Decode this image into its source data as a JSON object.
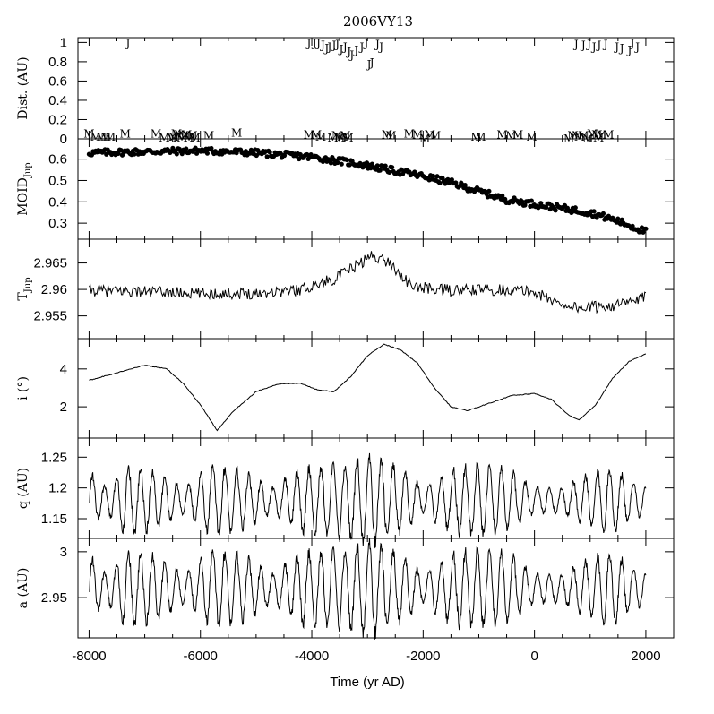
{
  "chart_data": {
    "type": "line",
    "title": "2006VY13",
    "xlabel": "Time (yr AD)",
    "xlim": [
      -8200,
      2500
    ],
    "x_ticks": [
      -8000,
      -6000,
      -4000,
      -2000,
      0,
      2000
    ],
    "x_tick_labels": [
      "-8000",
      "-6000",
      "-4000",
      "-2000",
      "0",
      "2000"
    ],
    "panels": [
      {
        "name": "dist",
        "ylabel": "Dist. (AU)",
        "type": "scatter-letters",
        "ylim": [
          0,
          1.05
        ],
        "y_ticks": [
          0,
          0.2,
          0.4,
          0.6,
          0.8,
          1
        ],
        "y_tick_labels": [
          "0",
          "0.2",
          "0.4",
          "0.6",
          "0.8",
          "1"
        ],
        "series": [
          {
            "name": "J",
            "x": [
              -7300,
              -4050,
              -3950,
              -3880,
              -3800,
              -3730,
              -3680,
              -3600,
              -3540,
              -3470,
              -3400,
              -3330,
              -3280,
              -3200,
              -3100,
              -3020,
              -2970,
              -2920,
              -2820,
              -2750,
              750,
              880,
              980,
              1070,
              1160,
              1280,
              1480,
              1570,
              1710,
              1760,
              1850
            ],
            "y": [
              1.0,
              1.0,
              1.0,
              1.0,
              0.98,
              0.95,
              0.96,
              0.98,
              0.99,
              0.94,
              0.96,
              0.91,
              0.88,
              0.93,
              0.96,
              1.0,
              0.78,
              0.8,
              0.99,
              0.96,
              0.99,
              0.98,
              0.99,
              0.96,
              0.98,
              0.99,
              0.96,
              0.95,
              0.93,
              1.0,
              0.96
            ]
          },
          {
            "name": "M",
            "x": [
              -8000,
              -7880,
              -7780,
              -7700,
              -7620,
              -7350,
              -6800,
              -6650,
              -6520,
              -6480,
              -6430,
              -6380,
              -6330,
              -6300,
              -6250,
              -6200,
              -6150,
              -6100,
              -5850,
              -5350,
              -4050,
              -3920,
              -3840,
              -3620,
              -3550,
              -3500,
              -3450,
              -3400,
              -3350,
              -2650,
              -2580,
              -2250,
              -2100,
              -1970,
              -1880,
              -1780,
              -1050,
              -970,
              -580,
              -420,
              -300,
              -50,
              620,
              690,
              760,
              810,
              880,
              960,
              1040,
              1120,
              1150,
              1200,
              1330
            ],
            "y": [
              0.06,
              0.03,
              0.03,
              0.03,
              0.03,
              0.06,
              0.06,
              0.02,
              0.02,
              0.03,
              0.06,
              0.05,
              0.02,
              0.04,
              0.05,
              0.02,
              0.04,
              0.02,
              0.04,
              0.07,
              0.05,
              0.05,
              0.03,
              0.02,
              0.04,
              0.02,
              0.03,
              0.04,
              0.02,
              0.05,
              0.04,
              0.06,
              0.05,
              0.01,
              0.05,
              0.04,
              0.03,
              0.03,
              0.05,
              0.04,
              0.05,
              0.03,
              0.01,
              0.04,
              0.04,
              0.03,
              0.04,
              0.01,
              0.06,
              0.05,
              0.02,
              0.05,
              0.05
            ]
          }
        ]
      },
      {
        "name": "moid",
        "ylabel": "MOID",
        "ylabel_sub": "Jup",
        "type": "scatter-dots",
        "ylim": [
          0.225,
          0.695
        ],
        "y_ticks": [
          0.3,
          0.4,
          0.5,
          0.6
        ],
        "y_tick_labels": [
          "0.3",
          "0.4",
          "0.5",
          "0.6"
        ],
        "trend": [
          [
            -8000,
            0.63
          ],
          [
            -6000,
            0.64
          ],
          [
            -5000,
            0.63
          ],
          [
            -4000,
            0.61
          ],
          [
            -3200,
            0.58
          ],
          [
            -2600,
            0.55
          ],
          [
            -2000,
            0.52
          ],
          [
            -1500,
            0.49
          ],
          [
            -1000,
            0.45
          ],
          [
            -500,
            0.41
          ],
          [
            0,
            0.39
          ],
          [
            500,
            0.37
          ],
          [
            1000,
            0.35
          ],
          [
            1500,
            0.31
          ],
          [
            2000,
            0.26
          ]
        ],
        "scatter": 0.015,
        "n_points": 420
      },
      {
        "name": "tjup",
        "ylabel": "T",
        "ylabel_sub": "Jup",
        "type": "line",
        "ylim": [
          2.9507,
          2.9695
        ],
        "y_ticks": [
          2.955,
          2.96,
          2.965
        ],
        "y_tick_labels": [
          "2.955",
          "2.96",
          "2.965"
        ],
        "trend": [
          [
            -8000,
            2.9598
          ],
          [
            -7000,
            2.9596
          ],
          [
            -6000,
            2.9592
          ],
          [
            -5000,
            2.9593
          ],
          [
            -4200,
            2.96
          ],
          [
            -3600,
            2.962
          ],
          [
            -3200,
            2.9645
          ],
          [
            -2900,
            2.9665
          ],
          [
            -2600,
            2.965
          ],
          [
            -2200,
            2.9605
          ],
          [
            -1500,
            2.9598
          ],
          [
            -500,
            2.96
          ],
          [
            0,
            2.9595
          ],
          [
            400,
            2.9575
          ],
          [
            800,
            2.9565
          ],
          [
            1200,
            2.9568
          ],
          [
            1600,
            2.9572
          ],
          [
            2000,
            2.9585
          ]
        ],
        "noise": 0.0011,
        "n_points": 500
      },
      {
        "name": "incl",
        "ylabel": "i (°)",
        "type": "line",
        "ylim": [
          0.35,
          5.6
        ],
        "y_ticks": [
          2,
          4
        ],
        "y_tick_labels": [
          "2",
          "4"
        ],
        "points": [
          [
            -8000,
            3.4
          ],
          [
            -7500,
            3.8
          ],
          [
            -7000,
            4.2
          ],
          [
            -6600,
            4.0
          ],
          [
            -6300,
            3.2
          ],
          [
            -6000,
            2.1
          ],
          [
            -5700,
            0.75
          ],
          [
            -5400,
            1.8
          ],
          [
            -5000,
            2.8
          ],
          [
            -4600,
            3.2
          ],
          [
            -4200,
            3.25
          ],
          [
            -3900,
            2.9
          ],
          [
            -3600,
            2.8
          ],
          [
            -3300,
            3.6
          ],
          [
            -3000,
            4.7
          ],
          [
            -2700,
            5.3
          ],
          [
            -2400,
            5.0
          ],
          [
            -2100,
            4.3
          ],
          [
            -1800,
            3.0
          ],
          [
            -1500,
            2.0
          ],
          [
            -1200,
            1.8
          ],
          [
            -800,
            2.2
          ],
          [
            -400,
            2.6
          ],
          [
            0,
            2.7
          ],
          [
            300,
            2.4
          ],
          [
            600,
            1.6
          ],
          [
            800,
            1.3
          ],
          [
            1100,
            2.1
          ],
          [
            1400,
            3.5
          ],
          [
            1700,
            4.4
          ],
          [
            2000,
            4.8
          ]
        ]
      },
      {
        "name": "q",
        "ylabel": "q (AU)",
        "type": "line",
        "ylim": [
          1.118,
          1.281
        ],
        "y_ticks": [
          1.15,
          1.2,
          1.25
        ],
        "y_tick_labels": [
          "1.15",
          "1.2",
          "1.25"
        ],
        "center": 1.18,
        "amplitude_profile": [
          [
            -8000,
            0.045
          ],
          [
            -7700,
            0.02
          ],
          [
            -7300,
            0.055
          ],
          [
            -6800,
            0.045
          ],
          [
            -6300,
            0.02
          ],
          [
            -5800,
            0.055
          ],
          [
            -5200,
            0.045
          ],
          [
            -4700,
            0.02
          ],
          [
            -4200,
            0.05
          ],
          [
            -3600,
            0.055
          ],
          [
            -2900,
            0.07
          ],
          [
            -2400,
            0.05
          ],
          [
            -2000,
            0.02
          ],
          [
            -1500,
            0.05
          ],
          [
            -900,
            0.055
          ],
          [
            -400,
            0.045
          ],
          [
            0,
            0.02
          ],
          [
            500,
            0.02
          ],
          [
            900,
            0.04
          ],
          [
            1400,
            0.05
          ],
          [
            2000,
            0.02
          ]
        ],
        "period": 216,
        "n_points": 1200
      },
      {
        "name": "a",
        "ylabel": "a (AU)",
        "type": "line",
        "ylim": [
          2.9062,
          3.0145
        ],
        "y_ticks": [
          2.95,
          3.0
        ],
        "y_tick_labels": [
          "2.95",
          "3"
        ],
        "center": 2.96,
        "amplitude_profile": [
          [
            -8000,
            0.035
          ],
          [
            -7700,
            0.015
          ],
          [
            -7300,
            0.04
          ],
          [
            -6800,
            0.035
          ],
          [
            -6300,
            0.015
          ],
          [
            -5800,
            0.04
          ],
          [
            -5200,
            0.035
          ],
          [
            -4700,
            0.015
          ],
          [
            -4200,
            0.038
          ],
          [
            -3600,
            0.04
          ],
          [
            -2900,
            0.05
          ],
          [
            -2400,
            0.035
          ],
          [
            -2000,
            0.015
          ],
          [
            -1500,
            0.038
          ],
          [
            -900,
            0.04
          ],
          [
            -400,
            0.035
          ],
          [
            0,
            0.015
          ],
          [
            500,
            0.015
          ],
          [
            900,
            0.03
          ],
          [
            1400,
            0.038
          ],
          [
            2000,
            0.015
          ]
        ],
        "period": 216,
        "n_points": 1200
      }
    ]
  }
}
